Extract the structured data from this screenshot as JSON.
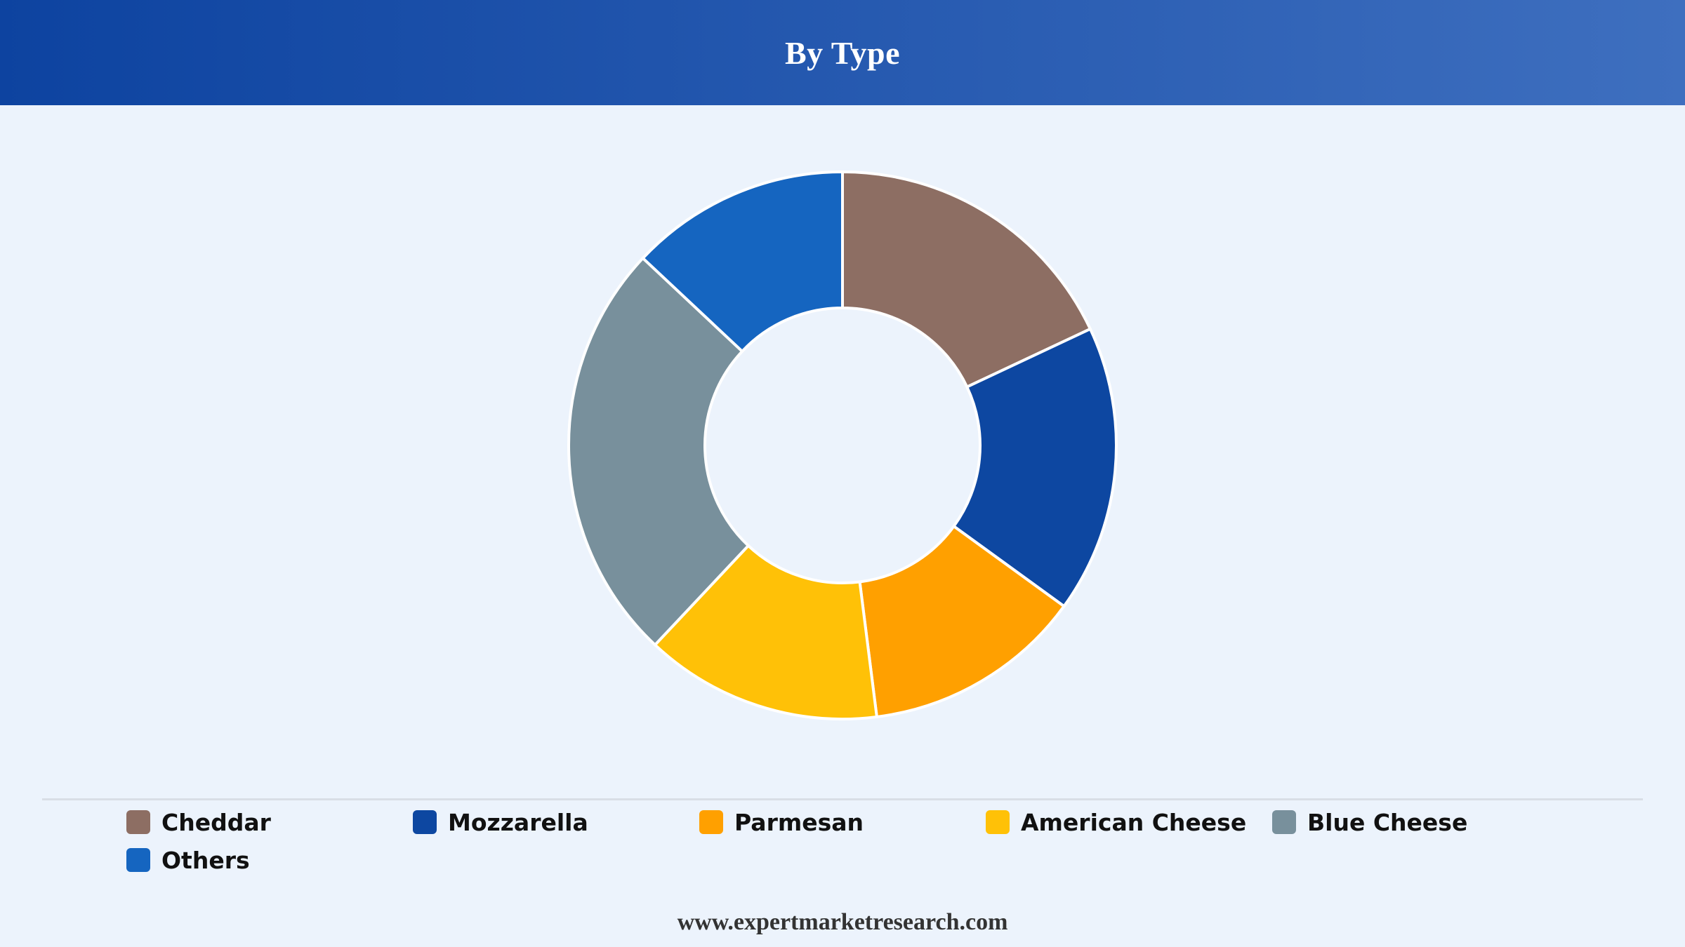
{
  "header": {
    "title": "By Type"
  },
  "chart_data": {
    "type": "pie",
    "title": "By Type",
    "donut": true,
    "categories": [
      "Cheddar",
      "Mozzarella",
      "Parmesan",
      "American Cheese",
      "Blue Cheese",
      "Others"
    ],
    "values": [
      18,
      17,
      13,
      14,
      25,
      13
    ],
    "unit": "%",
    "colors": [
      "#8d6e63",
      "#0d47a1",
      "#ffa000",
      "#ffc107",
      "#78909c",
      "#1565c0"
    ],
    "legend_position": "bottom"
  },
  "legend": {
    "items": [
      {
        "label": "Cheddar",
        "color": "#8d6e63"
      },
      {
        "label": "Mozzarella",
        "color": "#0d47a1"
      },
      {
        "label": "Parmesan",
        "color": "#ffa000"
      },
      {
        "label": "American Cheese",
        "color": "#ffc107"
      },
      {
        "label": "Blue Cheese",
        "color": "#78909c"
      },
      {
        "label": "Others",
        "color": "#1565c0"
      }
    ]
  },
  "footer": {
    "source_url": "www.expertmarketresearch.com"
  }
}
